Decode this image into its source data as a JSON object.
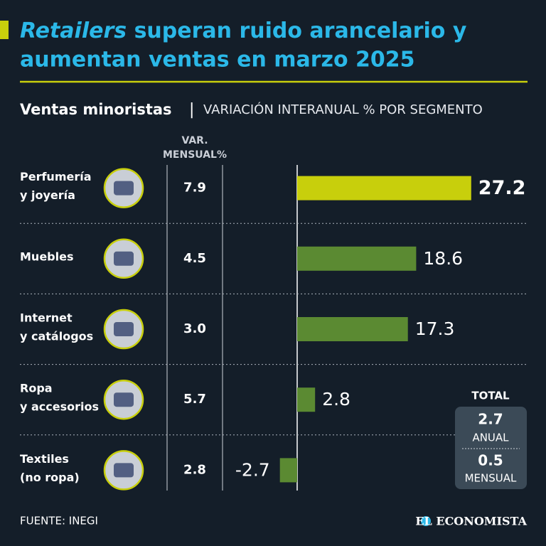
{
  "chart_data": {
    "type": "barh",
    "title_italic": "Retailers",
    "title_lines": [
      "superan ruido arancelario y",
      "aumentan ventas en marzo 2025"
    ],
    "subtitle_bold": "Ventas minoristas",
    "subtitle": "VARIACIÓN INTERANUAL % POR SEGMENTO",
    "monthly_header": [
      "VAR.",
      "MENSUAL%"
    ],
    "categories": [
      [
        "Perfumería",
        "y joyería"
      ],
      [
        "Muebles"
      ],
      [
        "Internet",
        "y catálogos"
      ],
      [
        "Ropa",
        "y accesorios"
      ],
      [
        "Textiles",
        "(no ropa)"
      ]
    ],
    "values": [
      27.2,
      18.6,
      17.3,
      2.8,
      -2.7
    ],
    "colors": [
      "#c8cf0c",
      "#5b8a32",
      "#5b8a32",
      "#5b8a32",
      "#5b8a32"
    ],
    "monthly": [
      "7.9",
      "4.5",
      "3.0",
      "5.7",
      "2.8"
    ],
    "xlim": [
      -4,
      30
    ],
    "total": {
      "title": "TOTAL",
      "annual": "2.7",
      "annual_label": "ANUAL",
      "monthly": "0.5",
      "monthly_label": "MENSUAL"
    },
    "source": "FUENTE: INEGI",
    "brand": "EL ECONOMISTA"
  }
}
